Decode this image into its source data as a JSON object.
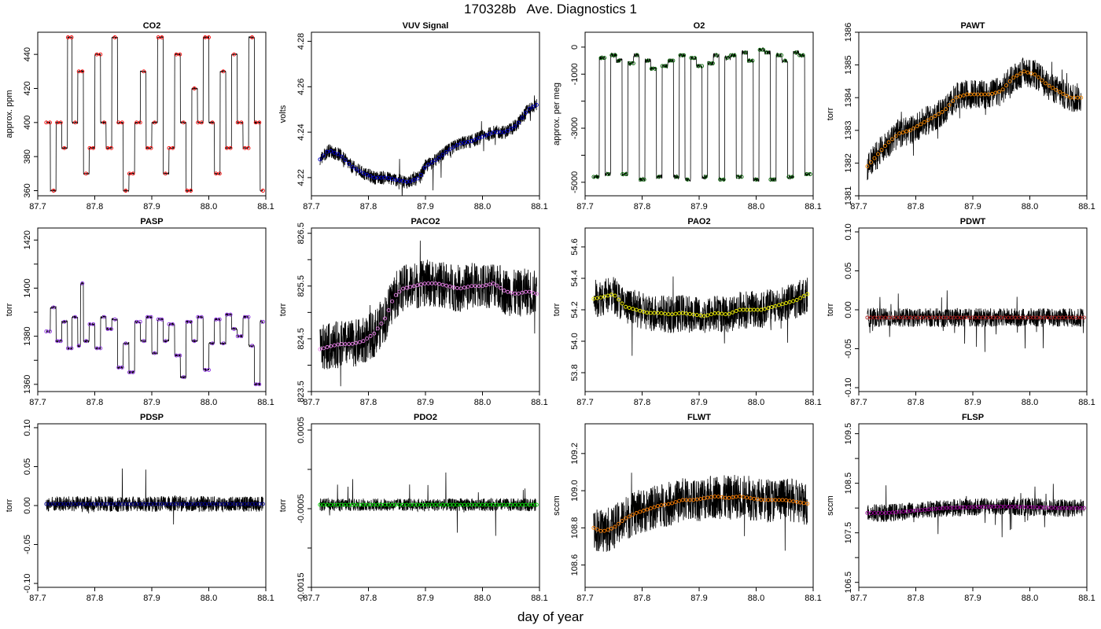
{
  "figure": {
    "title": "170328b   Ave. Diagnostics 1",
    "xlabel": "day of year"
  },
  "chart_data": [
    {
      "type": "line",
      "title": "CO2",
      "ylabel": "approx. ppm",
      "xlim": [
        87.7,
        88.1
      ],
      "ylim": [
        357,
        453
      ],
      "xticks": [
        "87.7",
        "87.8",
        "87.9",
        "88.0",
        "88.1"
      ],
      "yticks": [
        "360",
        "380",
        "400",
        "420",
        "440"
      ],
      "ytick_values": [
        360,
        380,
        400,
        420,
        440
      ],
      "noise": 0.4,
      "marker_color": "#ff0000",
      "series": [
        {
          "x": [
            87.715,
            87.722,
            87.732,
            87.742,
            87.752,
            87.76,
            87.77,
            87.78,
            87.79,
            87.8,
            87.81,
            87.82,
            87.83,
            87.84,
            87.85,
            87.86,
            87.87,
            87.88,
            87.89,
            87.9,
            87.91,
            87.92,
            87.93,
            87.94,
            87.95,
            87.96,
            87.97,
            87.98,
            87.99,
            88.0,
            88.01,
            88.02,
            88.03,
            88.04,
            88.05,
            88.06,
            88.07,
            88.08,
            88.09,
            88.095
          ],
          "y": [
            400,
            360,
            400,
            385,
            450,
            400,
            430,
            370,
            385,
            440,
            400,
            385,
            450,
            400,
            360,
            370,
            400,
            430,
            385,
            400,
            450,
            370,
            385,
            440,
            400,
            360,
            420,
            400,
            450,
            400,
            370,
            430,
            385,
            440,
            400,
            385,
            450,
            400,
            360,
            400
          ]
        }
      ]
    },
    {
      "type": "line",
      "title": "VUV Signal",
      "ylabel": "volts",
      "xlim": [
        87.7,
        88.1
      ],
      "ylim": [
        4.212,
        4.284
      ],
      "xticks": [
        "87.7",
        "87.8",
        "87.9",
        "88.0",
        "88.1"
      ],
      "yticks": [
        "4.22",
        "4.24",
        "4.26",
        "4.28"
      ],
      "ytick_values": [
        4.22,
        4.24,
        4.26,
        4.28
      ],
      "noise": 0.003,
      "marker_color": "#0000cc",
      "series": [
        {
          "x": [
            87.715,
            87.73,
            87.75,
            87.77,
            87.79,
            87.81,
            87.83,
            87.85,
            87.87,
            87.89,
            87.9,
            87.92,
            87.94,
            87.96,
            87.98,
            88.0,
            88.02,
            88.04,
            88.06,
            88.08,
            88.095
          ],
          "y": [
            4.228,
            4.232,
            4.23,
            4.225,
            4.222,
            4.22,
            4.22,
            4.219,
            4.218,
            4.22,
            4.225,
            4.228,
            4.232,
            4.235,
            4.236,
            4.238,
            4.24,
            4.24,
            4.243,
            4.25,
            4.252
          ]
        }
      ]
    },
    {
      "type": "line",
      "title": "O2",
      "ylabel": "approx. per meg",
      "xlim": [
        87.7,
        88.1
      ],
      "ylim": [
        -5500,
        550
      ],
      "xticks": [
        "87.7",
        "87.8",
        "87.9",
        "88.0",
        "88.1"
      ],
      "yticks": [
        "-5000",
        "-3000",
        "-1000",
        "0"
      ],
      "ytick_values": [
        -5000,
        -3000,
        -1000,
        0
      ],
      "minor_yticks": [
        -4000,
        -2000
      ],
      "noise": 80,
      "marker_color": "#006400",
      "series": [
        {
          "x": [
            87.715,
            87.725,
            87.735,
            87.745,
            87.755,
            87.765,
            87.775,
            87.785,
            87.795,
            87.805,
            87.815,
            87.825,
            87.835,
            87.845,
            87.855,
            87.865,
            87.875,
            87.885,
            87.895,
            87.905,
            87.915,
            87.925,
            87.935,
            87.945,
            87.955,
            87.965,
            87.975,
            87.985,
            87.995,
            88.005,
            88.015,
            88.025,
            88.035,
            88.045,
            88.055,
            88.065,
            88.075,
            88.085,
            88.095
          ],
          "y": [
            -4800,
            -400,
            -4700,
            -300,
            -500,
            -4700,
            -600,
            -300,
            -4900,
            -500,
            -800,
            -4800,
            -700,
            -500,
            -4800,
            -300,
            -4900,
            -400,
            -700,
            -4800,
            -600,
            -300,
            -4900,
            -400,
            -300,
            -4800,
            -200,
            -500,
            -4900,
            -100,
            -200,
            -4900,
            -300,
            -500,
            -4800,
            -200,
            -300,
            -4700,
            -200
          ]
        }
      ]
    },
    {
      "type": "line",
      "title": "PAWT",
      "ylabel": "torr",
      "xlim": [
        87.7,
        88.1
      ],
      "ylim": [
        1381,
        1386
      ],
      "xticks": [
        "87.7",
        "87.8",
        "87.9",
        "88.0",
        "88.1"
      ],
      "yticks": [
        "1381",
        "1382",
        "1383",
        "1384",
        "1385",
        "1386"
      ],
      "ytick_values": [
        1381,
        1382,
        1383,
        1384,
        1385,
        1386
      ],
      "noise": 0.45,
      "marker_color": "#ff8c00",
      "series": [
        {
          "x": [
            87.715,
            87.73,
            87.75,
            87.77,
            87.79,
            87.81,
            87.83,
            87.85,
            87.87,
            87.89,
            87.91,
            87.93,
            87.95,
            87.97,
            87.99,
            88.01,
            88.03,
            88.05,
            88.07,
            88.09
          ],
          "y": [
            1381.9,
            1382.2,
            1382.6,
            1382.9,
            1383.0,
            1383.2,
            1383.4,
            1383.6,
            1384.0,
            1384.1,
            1384.1,
            1384.1,
            1384.2,
            1384.6,
            1384.8,
            1384.7,
            1384.4,
            1384.2,
            1384.0,
            1384.0
          ]
        }
      ]
    },
    {
      "type": "line",
      "title": "PASP",
      "ylabel": "torr",
      "xlim": [
        87.7,
        88.1
      ],
      "ylim": [
        1357,
        1425
      ],
      "xticks": [
        "87.7",
        "87.8",
        "87.9",
        "88.0",
        "88.1"
      ],
      "yticks": [
        "1360",
        "1380",
        "1400",
        "1420"
      ],
      "ytick_values": [
        1360,
        1380,
        1400,
        1420
      ],
      "minor_yticks": [
        1370,
        1390,
        1410
      ],
      "noise": 0.5,
      "marker_color": "#8a2be2",
      "series": [
        {
          "x": [
            87.715,
            87.722,
            87.732,
            87.742,
            87.752,
            87.76,
            87.77,
            87.775,
            87.78,
            87.79,
            87.8,
            87.81,
            87.82,
            87.83,
            87.84,
            87.85,
            87.86,
            87.87,
            87.88,
            87.89,
            87.9,
            87.91,
            87.92,
            87.93,
            87.94,
            87.95,
            87.96,
            87.97,
            87.98,
            87.99,
            88.0,
            88.01,
            88.02,
            88.03,
            88.04,
            88.05,
            88.06,
            88.07,
            88.08,
            88.09,
            88.095
          ],
          "y": [
            1382,
            1392,
            1378,
            1386,
            1375,
            1388,
            1376,
            1402,
            1378,
            1385,
            1375,
            1388,
            1383,
            1387,
            1367,
            1377,
            1365,
            1386,
            1378,
            1388,
            1373,
            1387,
            1378,
            1385,
            1372,
            1363,
            1386,
            1378,
            1388,
            1366,
            1377,
            1387,
            1377,
            1389,
            1383,
            1380,
            1388,
            1376,
            1360,
            1386,
            1386
          ]
        }
      ]
    },
    {
      "type": "line",
      "title": "PACO2",
      "ylabel": "torr",
      "xlim": [
        87.7,
        88.1
      ],
      "ylim": [
        823.5,
        826.6
      ],
      "xticks": [
        "87.7",
        "87.8",
        "87.9",
        "88.0",
        "88.1"
      ],
      "yticks": [
        "823.5",
        "824.5",
        "825.5",
        "826.5"
      ],
      "ytick_values": [
        823.5,
        824.5,
        825.5,
        826.5
      ],
      "minor_yticks": [
        824,
        825,
        826
      ],
      "noise": 0.45,
      "marker_color": "#ee82ee",
      "series": [
        {
          "x": [
            87.715,
            87.73,
            87.75,
            87.77,
            87.79,
            87.81,
            87.83,
            87.845,
            87.86,
            87.88,
            87.9,
            87.92,
            87.94,
            87.96,
            87.98,
            88.0,
            88.02,
            88.04,
            88.06,
            88.08,
            88.095
          ],
          "y": [
            824.3,
            824.35,
            824.4,
            824.4,
            824.45,
            824.6,
            824.9,
            825.3,
            825.45,
            825.5,
            825.55,
            825.55,
            825.5,
            825.45,
            825.5,
            825.5,
            825.55,
            825.4,
            825.35,
            825.4,
            825.35
          ]
        }
      ]
    },
    {
      "type": "line",
      "title": "PAO2",
      "ylabel": "torr",
      "xlim": [
        87.7,
        88.1
      ],
      "ylim": [
        53.68,
        54.72
      ],
      "xticks": [
        "87.7",
        "87.8",
        "87.9",
        "88.0",
        "88.1"
      ],
      "yticks": [
        "53.8",
        "54.0",
        "54.2",
        "54.4",
        "54.6"
      ],
      "ytick_values": [
        53.8,
        54.0,
        54.2,
        54.4,
        54.6
      ],
      "noise": 0.12,
      "marker_color": "#eeee00",
      "series": [
        {
          "x": [
            87.715,
            87.73,
            87.75,
            87.77,
            87.79,
            87.81,
            87.83,
            87.85,
            87.87,
            87.89,
            87.91,
            87.93,
            87.95,
            87.97,
            87.99,
            88.01,
            88.03,
            88.05,
            88.07,
            88.09
          ],
          "y": [
            54.27,
            54.28,
            54.3,
            54.22,
            54.2,
            54.18,
            54.18,
            54.17,
            54.18,
            54.17,
            54.16,
            54.18,
            54.17,
            54.2,
            54.2,
            54.2,
            54.22,
            54.24,
            54.26,
            54.3
          ]
        }
      ]
    },
    {
      "type": "line",
      "title": "PDWT",
      "ylabel": "torr",
      "xlim": [
        87.7,
        88.1
      ],
      "ylim": [
        -0.105,
        0.105
      ],
      "xticks": [
        "87.7",
        "87.8",
        "87.9",
        "88.0",
        "88.1"
      ],
      "yticks": [
        "-0.10",
        "-0.05",
        "0.00",
        "0.05",
        "0.10"
      ],
      "ytick_values": [
        -0.1,
        -0.05,
        0.0,
        0.05,
        0.1
      ],
      "noise": 0.012,
      "marker_color": "#b22222",
      "series": [
        {
          "x": [
            87.715,
            87.8,
            87.9,
            88.0,
            88.095
          ],
          "y": [
            -0.01,
            -0.01,
            -0.01,
            -0.01,
            -0.01
          ]
        }
      ]
    },
    {
      "type": "line",
      "title": "PDSP",
      "ylabel": "torr",
      "xlim": [
        87.7,
        88.1
      ],
      "ylim": [
        -0.105,
        0.105
      ],
      "xticks": [
        "87.7",
        "87.8",
        "87.9",
        "88.0",
        "88.1"
      ],
      "yticks": [
        "-0.10",
        "-0.05",
        "0.00",
        "0.05",
        "0.10"
      ],
      "ytick_values": [
        -0.1,
        -0.05,
        0.0,
        0.05,
        0.1
      ],
      "noise": 0.01,
      "marker_color": "#00008b",
      "series": [
        {
          "x": [
            87.715,
            87.8,
            87.9,
            88.0,
            88.095
          ],
          "y": [
            0.002,
            0.002,
            0.002,
            0.002,
            0.002
          ]
        }
      ]
    },
    {
      "type": "line",
      "title": "PDO2",
      "ylabel": "torr",
      "xlim": [
        87.7,
        88.1
      ],
      "ylim": [
        -0.0015,
        0.00058
      ],
      "xticks": [
        "87.7",
        "87.8",
        "87.9",
        "88.0",
        "88.1"
      ],
      "yticks": [
        "-0.0015",
        "-0.0005",
        "0.0005"
      ],
      "ytick_values": [
        -0.0015,
        -0.0005,
        0.0005
      ],
      "minor_yticks": [
        -0.001,
        0.0
      ],
      "noise": 8e-05,
      "marker_color": "#00dd00",
      "series": [
        {
          "x": [
            87.715,
            87.8,
            87.9,
            88.0,
            88.095
          ],
          "y": [
            -0.00045,
            -0.00045,
            -0.00045,
            -0.00045,
            -0.00045
          ]
        }
      ]
    },
    {
      "type": "line",
      "title": "FLWT",
      "ylabel": "sccm",
      "xlim": [
        87.7,
        88.1
      ],
      "ylim": [
        108.48,
        109.36
      ],
      "xticks": [
        "87.7",
        "87.8",
        "87.9",
        "88.0",
        "88.1"
      ],
      "yticks": [
        "108.6",
        "108.8",
        "109.0",
        "109.2"
      ],
      "ytick_values": [
        108.6,
        108.8,
        109.0,
        109.2
      ],
      "noise": 0.12,
      "marker_color": "#ff7f00",
      "series": [
        {
          "x": [
            87.715,
            87.73,
            87.75,
            87.77,
            87.79,
            87.81,
            87.83,
            87.85,
            87.87,
            87.89,
            87.91,
            87.93,
            87.95,
            87.97,
            87.99,
            88.01,
            88.03,
            88.05,
            88.07,
            88.09
          ],
          "y": [
            108.8,
            108.78,
            108.8,
            108.85,
            108.88,
            108.9,
            108.92,
            108.93,
            108.95,
            108.95,
            108.96,
            108.97,
            108.96,
            108.97,
            108.96,
            108.95,
            108.95,
            108.95,
            108.94,
            108.93
          ]
        }
      ]
    },
    {
      "type": "line",
      "title": "FLSP",
      "ylabel": "sccm",
      "xlim": [
        87.7,
        88.1
      ],
      "ylim": [
        106.4,
        109.7
      ],
      "xticks": [
        "87.7",
        "87.8",
        "87.9",
        "88.0",
        "88.1"
      ],
      "yticks": [
        "106.5",
        "107.5",
        "108.5",
        "109.5"
      ],
      "ytick_values": [
        106.5,
        107.5,
        108.5,
        109.5
      ],
      "minor_yticks": [
        107,
        108,
        109
      ],
      "noise": 0.18,
      "marker_color": "#990099",
      "series": [
        {
          "x": [
            87.715,
            87.75,
            87.8,
            87.85,
            87.9,
            87.95,
            88.0,
            88.05,
            88.095
          ],
          "y": [
            107.9,
            107.9,
            107.95,
            108.0,
            108.02,
            108.03,
            108.02,
            108.0,
            108.0
          ]
        }
      ]
    }
  ]
}
